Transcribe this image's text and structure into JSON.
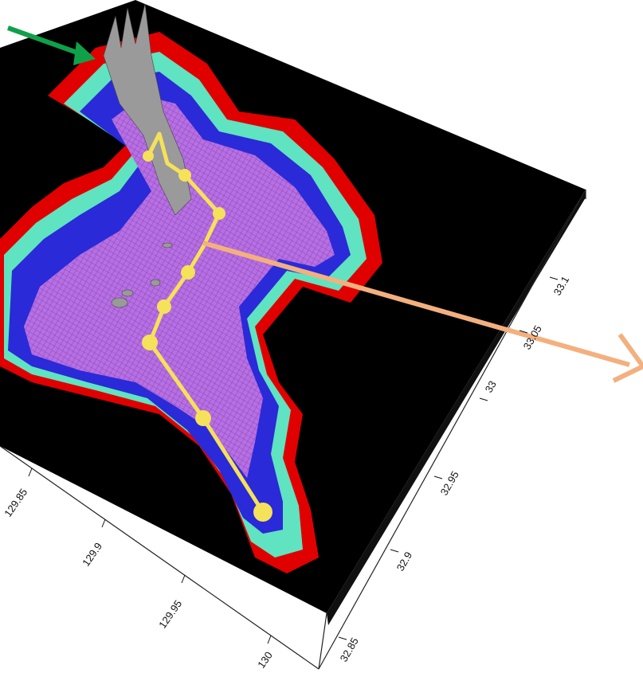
{
  "axes": {
    "x_tick_labels": [
      "129.85",
      "129.9",
      "129.95",
      "130"
    ],
    "y_tick_labels": [
      "32.85",
      "32.9",
      "32.95",
      "33",
      "33.05",
      "33.1"
    ]
  },
  "legend_colors": {
    "deep": "#b86ee6",
    "mid_deep": "#2a2ad8",
    "mid": "#5fe3c0",
    "shallow": "#e00000",
    "land": "#000000",
    "rock": "#9a9a9a"
  },
  "route": {
    "color": "#f5e15a",
    "waypoint_count": 9
  },
  "arrows": [
    {
      "name": "green-arrow",
      "color": "#0fa14a"
    },
    {
      "name": "orange-arrow",
      "color": "#f3b07e"
    }
  ]
}
